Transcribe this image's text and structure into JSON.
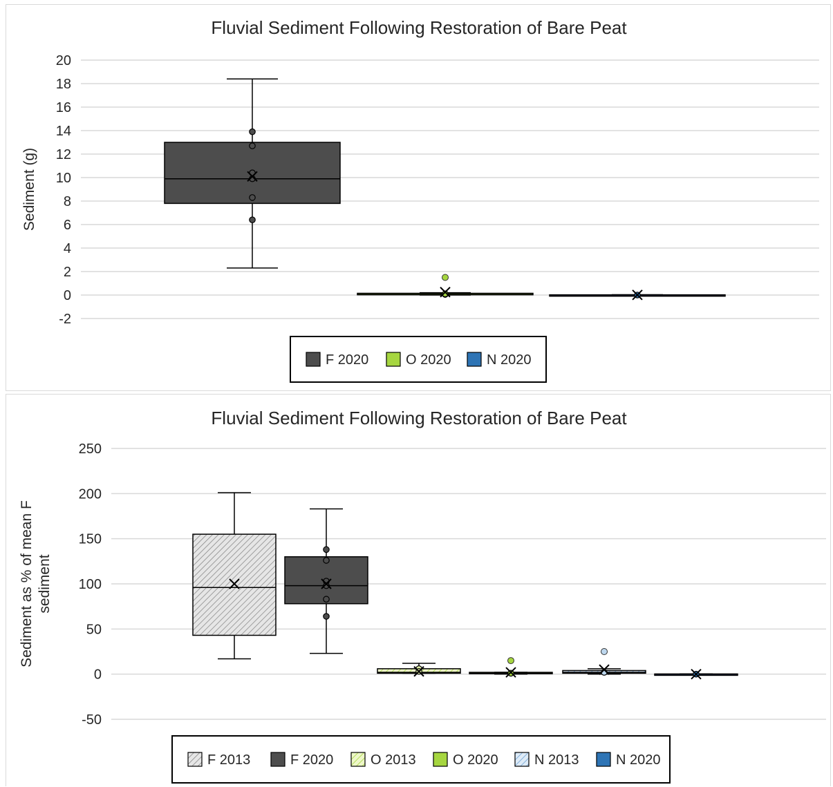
{
  "chart_data": [
    {
      "type": "box",
      "title": "Fluvial Sediment Following Restoration of Bare Peat",
      "ylabel": "Sediment (g)",
      "ylim": [
        -2,
        20
      ],
      "yticks": [
        -2,
        0,
        2,
        4,
        6,
        8,
        10,
        12,
        14,
        16,
        18,
        20
      ],
      "grid": true,
      "legend_position": "bottom",
      "legend": [
        "F 2020",
        "O 2020",
        "N 2020"
      ],
      "series": [
        {
          "name": "F 2020",
          "fill": "#4d4d4d",
          "pattern": "solid",
          "whisker_min": 2.3,
          "q1": 7.8,
          "median": 9.9,
          "q3": 13.0,
          "whisker_max": 18.4,
          "mean": 10.1,
          "points": [
            13.9,
            12.7,
            10.4,
            9.9,
            8.3,
            6.4
          ],
          "outliers": []
        },
        {
          "name": "O 2020",
          "fill": "#a6d640",
          "pattern": "solid",
          "whisker_min": 0.0,
          "q1": 0.02,
          "median": 0.05,
          "q3": 0.15,
          "whisker_max": 0.2,
          "mean": 0.25,
          "points": [
            0.05,
            0.1
          ],
          "outliers": [
            1.5
          ]
        },
        {
          "name": "N 2020",
          "fill": "#2e74b5",
          "pattern": "solid",
          "whisker_min": 0.0,
          "q1": 0.0,
          "median": 0.0,
          "q3": 0.02,
          "whisker_max": 0.03,
          "mean": 0.01,
          "points": [
            0.0
          ],
          "outliers": []
        }
      ]
    },
    {
      "type": "box",
      "title": "Fluvial Sediment Following Restoration of Bare Peat",
      "ylabel": "Sediment as % of mean F sediment",
      "ylim": [
        -50,
        250
      ],
      "yticks": [
        -50,
        0,
        50,
        100,
        150,
        200,
        250
      ],
      "grid": true,
      "legend_position": "bottom",
      "legend": [
        "F 2013",
        "F 2020",
        "O 2013",
        "O 2020",
        "N 2013",
        "N 2020"
      ],
      "series": [
        {
          "name": "F 2013",
          "fill": "#d9d9d9",
          "pattern": "hatch",
          "whisker_min": 17,
          "q1": 43,
          "median": 96,
          "q3": 155,
          "whisker_max": 201,
          "mean": 100,
          "points": [],
          "outliers": []
        },
        {
          "name": "F 2020",
          "fill": "#4d4d4d",
          "pattern": "solid",
          "whisker_min": 23,
          "q1": 78,
          "median": 98,
          "q3": 130,
          "whisker_max": 183,
          "mean": 100,
          "points": [
            138,
            126,
            103,
            98,
            83,
            64
          ],
          "outliers": []
        },
        {
          "name": "O 2013",
          "fill": "#e2f0a6",
          "pattern": "hatch",
          "whisker_min": 1,
          "q1": 1,
          "median": 2,
          "q3": 6,
          "whisker_max": 12,
          "mean": 3,
          "points": [
            6,
            3
          ],
          "outliers": []
        },
        {
          "name": "O 2020",
          "fill": "#a6d640",
          "pattern": "solid",
          "whisker_min": 0,
          "q1": 0.5,
          "median": 1,
          "q3": 2,
          "whisker_max": 2,
          "mean": 2,
          "points": [
            1
          ],
          "outliers": [
            15
          ]
        },
        {
          "name": "N 2013",
          "fill": "#bdd7ee",
          "pattern": "hatch",
          "whisker_min": 0,
          "q1": 1,
          "median": 2,
          "q3": 4,
          "whisker_max": 6,
          "mean": 5,
          "points": [
            2
          ],
          "outliers": [
            25
          ]
        },
        {
          "name": "N 2020",
          "fill": "#2e74b5",
          "pattern": "solid",
          "whisker_min": 0,
          "q1": 0,
          "median": 0,
          "q3": 0.2,
          "whisker_max": 0.3,
          "mean": 0,
          "points": [
            0
          ],
          "outliers": []
        }
      ]
    }
  ]
}
